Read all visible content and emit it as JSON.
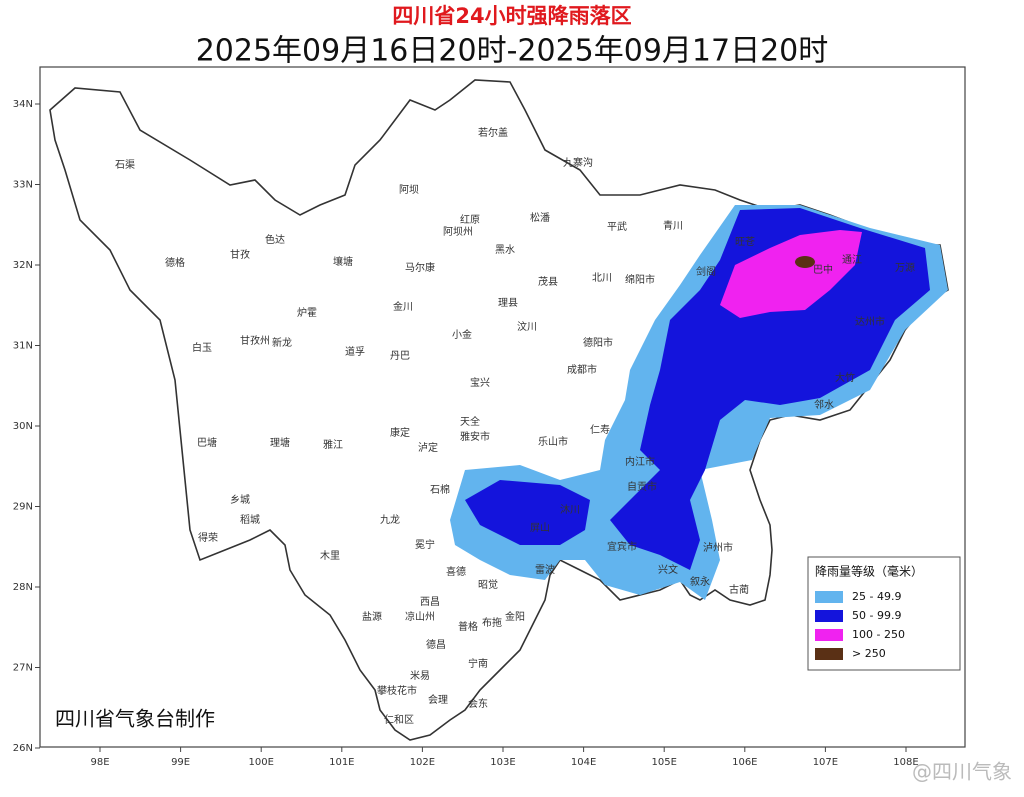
{
  "header": {
    "title": "四川省24小时强降雨落区",
    "subtitle": "2025年09月16日20时-2025年09月17日20时"
  },
  "map": {
    "lat_ticks": [
      {
        "value": 34,
        "label": "34N"
      },
      {
        "value": 33,
        "label": "33N"
      },
      {
        "value": 32,
        "label": "32N"
      },
      {
        "value": 31,
        "label": "31N"
      },
      {
        "value": 30,
        "label": "30N"
      },
      {
        "value": 29,
        "label": "29N"
      },
      {
        "value": 28,
        "label": "28N"
      },
      {
        "value": 27,
        "label": "27N"
      },
      {
        "value": 26,
        "label": "26N"
      }
    ],
    "lon_ticks": [
      {
        "value": 98,
        "label": "98E"
      },
      {
        "value": 99,
        "label": "99E"
      },
      {
        "value": 100,
        "label": "100E"
      },
      {
        "value": 101,
        "label": "101E"
      },
      {
        "value": 102,
        "label": "102E"
      },
      {
        "value": 103,
        "label": "103E"
      },
      {
        "value": 104,
        "label": "104E"
      },
      {
        "value": 105,
        "label": "105E"
      },
      {
        "value": 106,
        "label": "106E"
      },
      {
        "value": 107,
        "label": "107E"
      },
      {
        "value": 108,
        "label": "108E"
      }
    ],
    "places": [
      "石渠",
      "若尔盖",
      "九寨沟",
      "阿坝",
      "德格",
      "色达",
      "甘孜",
      "红原",
      "阿坝州",
      "松潘",
      "平武",
      "青川",
      "壤塘",
      "马尔康",
      "黑水",
      "茂县",
      "北川",
      "绵阳市",
      "剑阁",
      "旺苍",
      "巴中",
      "通江",
      "万源",
      "炉霍",
      "金川",
      "理县",
      "汶川",
      "新龙",
      "白玉",
      "甘孜州",
      "小金",
      "道孚",
      "丹巴",
      "德阳市",
      "达州市",
      "成都市",
      "宝兴",
      "巴塘",
      "理塘",
      "雅江",
      "康定",
      "雅安市",
      "天全",
      "泸定",
      "乐山市",
      "仁寿",
      "内江市",
      "自贡市",
      "宜宾市",
      "泸州市",
      "古蔺",
      "乡城",
      "稻城",
      "得荣",
      "九龙",
      "木里",
      "冕宁",
      "喜德",
      "昭觉",
      "西昌",
      "凉山州",
      "盐源",
      "普格",
      "布拖",
      "德昌",
      "宁南",
      "米易",
      "攀枝花市",
      "会理",
      "会东",
      "仁和区",
      "邻水",
      "大竹",
      "雷波",
      "金阳",
      "石棉",
      "沐川",
      "屏山",
      "叙永",
      "兴文"
    ]
  },
  "legend": {
    "title": "降雨量等级（毫米）",
    "items": [
      {
        "label": "25 - 49.9",
        "color": "#62b4ee"
      },
      {
        "label": "50 - 99.9",
        "color": "#1414dc"
      },
      {
        "label": "100 - 250",
        "color": "#f022f0"
      },
      {
        "label": "> 250",
        "color": "#5a3015"
      }
    ]
  },
  "credit": "四川省气象台制作",
  "watermark": "@四川气象"
}
